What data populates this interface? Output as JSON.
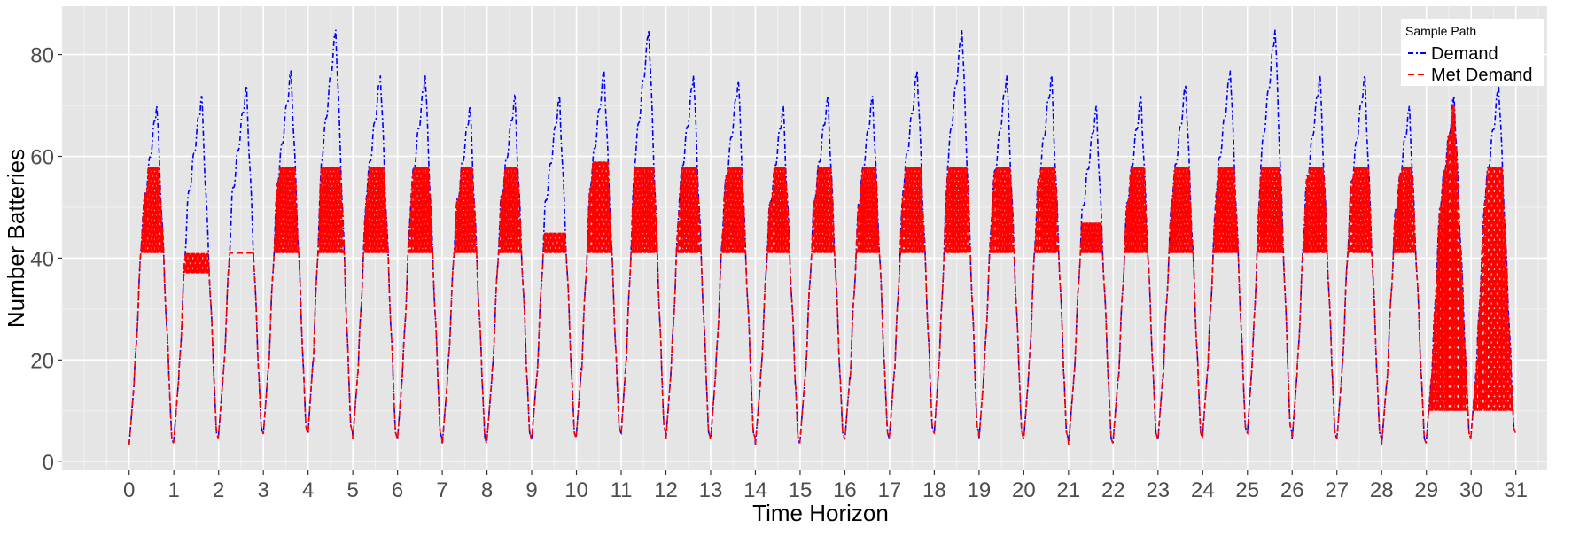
{
  "chart_data": {
    "type": "line",
    "title": "",
    "xlabel": "Time Horizon",
    "ylabel": "Number Batteries",
    "xlim": [
      -1.5,
      31.7
    ],
    "ylim": [
      -1.7,
      89.5
    ],
    "xticks": [
      0,
      1,
      2,
      3,
      4,
      5,
      6,
      7,
      8,
      9,
      10,
      11,
      12,
      13,
      14,
      15,
      16,
      17,
      18,
      19,
      20,
      21,
      22,
      23,
      24,
      25,
      26,
      27,
      28,
      29,
      30,
      31
    ],
    "xtick_labels": [
      "0",
      "1",
      "2",
      "3",
      "4",
      "5",
      "6",
      "7",
      "8",
      "9",
      "10",
      "11",
      "12",
      "13",
      "14",
      "15",
      "16",
      "17",
      "18",
      "19",
      "20",
      "21",
      "22",
      "23",
      "24",
      "25",
      "26",
      "27",
      "28",
      "29",
      "30",
      "31"
    ],
    "yticks": [
      0,
      20,
      40,
      60,
      80
    ],
    "ytick_labels": [
      "0",
      "20",
      "40",
      "60",
      "80"
    ],
    "grid": true,
    "legend": {
      "title": "Sample Path",
      "placement": "top-right",
      "entries": [
        {
          "name": "Demand",
          "color": "#0000ff",
          "dash": "dash-dot"
        },
        {
          "name": "Met Demand",
          "color": "#ff0000",
          "dash": "dashed"
        }
      ]
    },
    "daily_profile": {
      "description": "Estimated per-day values read from the chart",
      "days": [
        0,
        1,
        2,
        3,
        4,
        5,
        6,
        7,
        8,
        9,
        10,
        11,
        12,
        13,
        14,
        15,
        16,
        17,
        18,
        19,
        20,
        21,
        22,
        23,
        24,
        25,
        26,
        27,
        28,
        29,
        30
      ],
      "demand_min": [
        2,
        3,
        4,
        4,
        4,
        3,
        3,
        2,
        3,
        3,
        4,
        4,
        3,
        3,
        2,
        3,
        3,
        4,
        4,
        3,
        3,
        2,
        3,
        3,
        4,
        4,
        3,
        3,
        2,
        3,
        4
      ],
      "demand_peak": [
        70,
        72,
        74,
        77,
        85,
        76,
        76,
        70,
        72,
        72,
        77,
        85,
        76,
        75,
        70,
        72,
        72,
        77,
        85,
        76,
        76,
        70,
        72,
        74,
        77,
        85,
        76,
        76,
        70,
        72,
        74
      ],
      "met_demand_cap": [
        58,
        41,
        41,
        58,
        58,
        58,
        58,
        58,
        58,
        45,
        59,
        58,
        58,
        58,
        58,
        58,
        58,
        58,
        58,
        58,
        58,
        47,
        58,
        58,
        58,
        58,
        58,
        58,
        58,
        70,
        58
      ],
      "met_demand_base": [
        41,
        37,
        41,
        41,
        41,
        41,
        41,
        41,
        41,
        41,
        41,
        41,
        41,
        41,
        41,
        41,
        41,
        41,
        41,
        41,
        41,
        41,
        41,
        41,
        41,
        41,
        41,
        41,
        41,
        10,
        10
      ]
    },
    "series": [
      {
        "name": "Demand",
        "description": "Blue dash-dot line: daily cycle from near 2-4 up to a peak of about 70-85 each day"
      },
      {
        "name": "Met Demand",
        "description": "Red dashed line: follows demand below roughly 41-58 and oscillates between about 41 and 58 when demand exceeds capacity"
      }
    ]
  },
  "colors": {
    "panel_background": "#e5e5e5",
    "grid_major": "#ffffff",
    "grid_minor": "#f2f2f2",
    "demand": "#0000ff",
    "met_demand": "#ff0000",
    "axis_text": "#4d4d4d",
    "axis_title": "#000000"
  }
}
